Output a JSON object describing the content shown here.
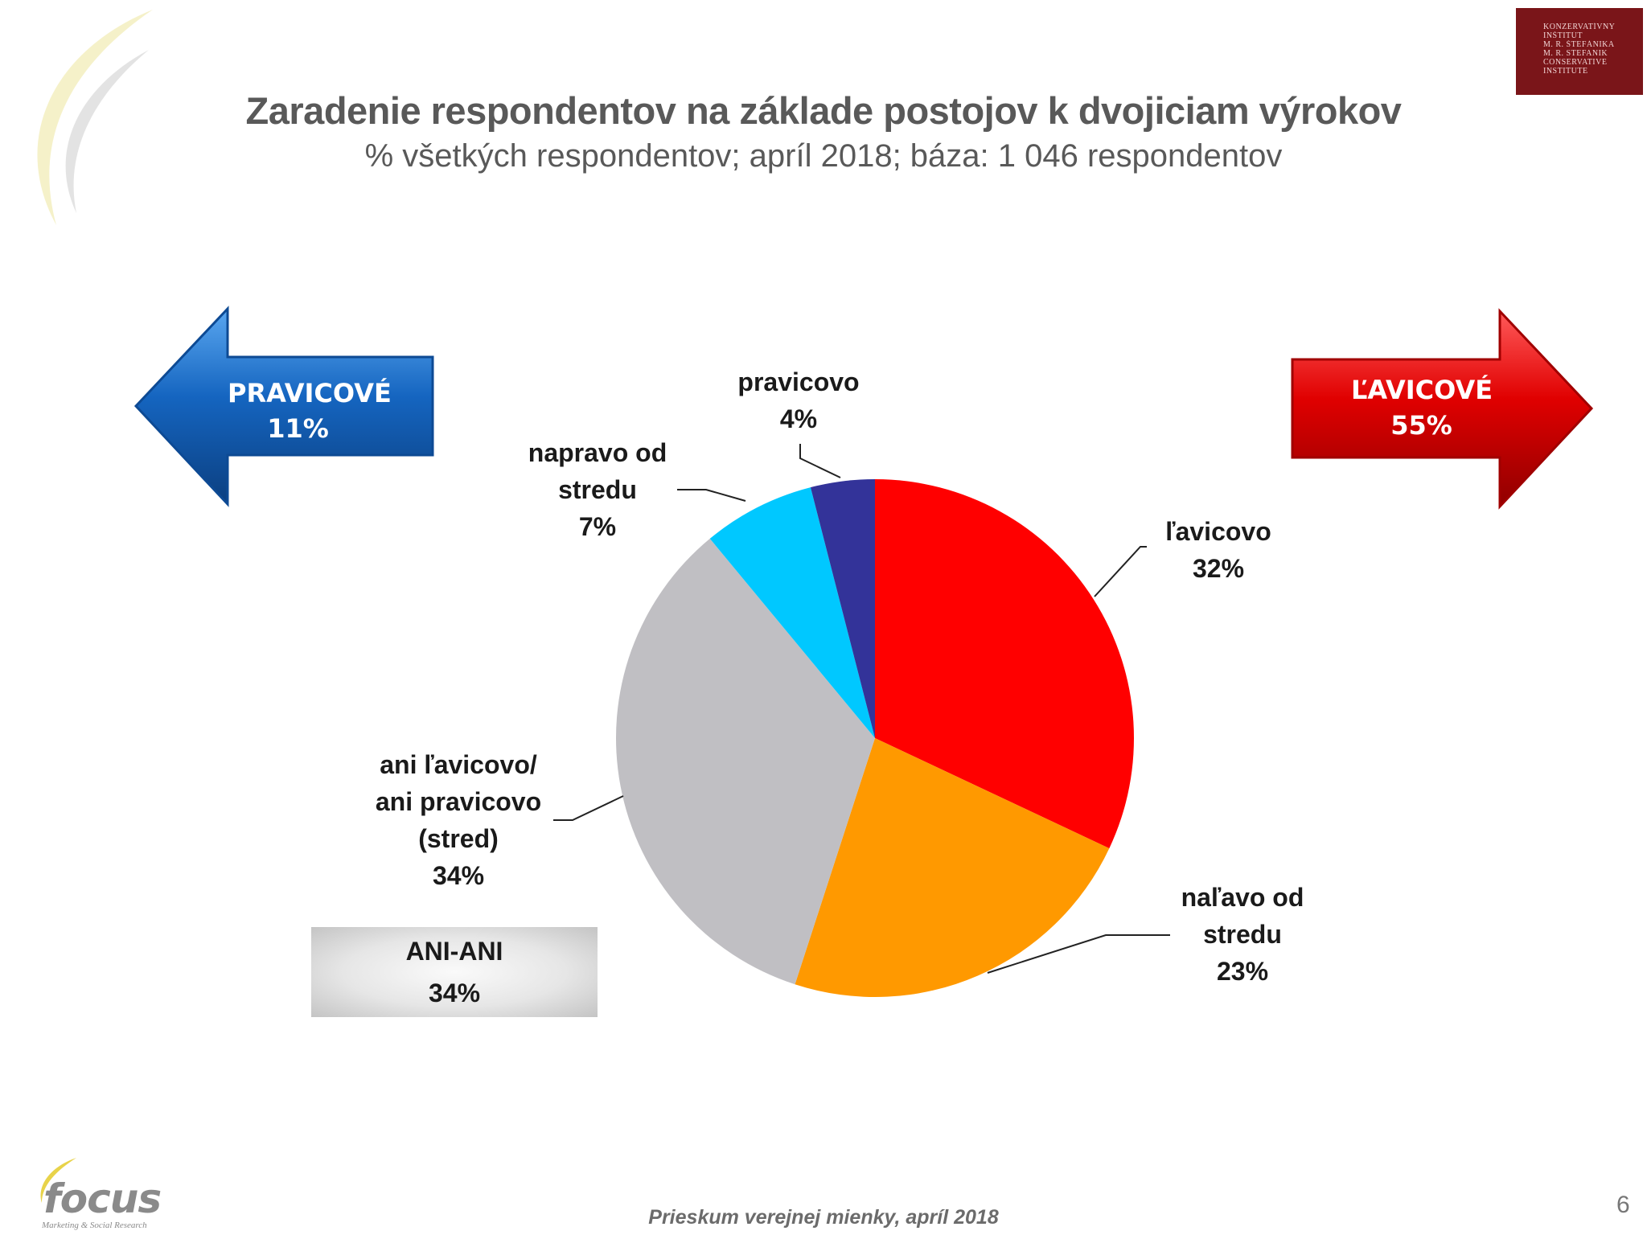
{
  "header": {
    "title": "Zaradenie respondentov na základe postojov k dvojiciam výrokov",
    "subtitle": "% všetkých respondentov; apríl 2018; báza: 1 046 respondentov"
  },
  "institute_logo": {
    "lines": [
      "KONZERVATÍVNY",
      "INŠTITÚT",
      "M. R. ŠTEFÁNIKA",
      "M. R. STEFANIK",
      "CONSERVATIVE",
      "INSTITUTE"
    ]
  },
  "arrows": {
    "left": {
      "label": "PRAVICOVÉ",
      "value": "11%",
      "color": "#1565c0"
    },
    "right": {
      "label": "ĽAVICOVÉ",
      "value": "55%",
      "color": "#e00000"
    }
  },
  "chart_data": {
    "type": "pie",
    "unit": "%",
    "slices": [
      {
        "name": "ľavicovo",
        "label_lines": [
          "ľavicovo"
        ],
        "value": 32,
        "value_label": "32%",
        "color": "#ff0000"
      },
      {
        "name": "naľavo od stredu",
        "label_lines": [
          "naľavo od",
          "stredu"
        ],
        "value": 23,
        "value_label": "23%",
        "color": "#ff9900"
      },
      {
        "name": "ani ľavicovo/ ani pravicovo (stred)",
        "label_lines": [
          "ani ľavicovo/",
          "ani pravicovo",
          "(stred)"
        ],
        "value": 34,
        "value_label": "34%",
        "color": "#c0bfc3"
      },
      {
        "name": "napravo od stredu",
        "label_lines": [
          "napravo od",
          "stredu"
        ],
        "value": 7,
        "value_label": "7%",
        "color": "#00c8ff"
      },
      {
        "name": "pravicovo",
        "label_lines": [
          "pravicovo"
        ],
        "value": 4,
        "value_label": "4%",
        "color": "#333399"
      }
    ]
  },
  "summary_box": {
    "label": "ANI-ANI",
    "value": "34%"
  },
  "footer": {
    "text": "Prieskum verejnej mienky, apríl 2018",
    "page_number": "6",
    "brand": "focus",
    "brand_tagline": "Marketing & Social Research"
  }
}
